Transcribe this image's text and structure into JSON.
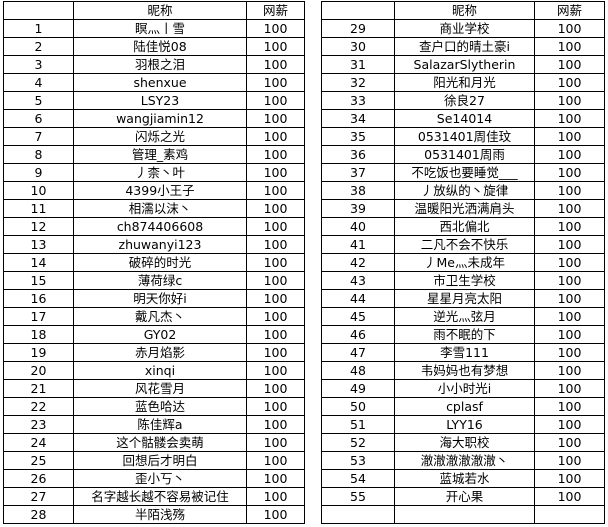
{
  "headers": {
    "index": "",
    "nickname": "昵称",
    "salary": "网薪"
  },
  "left": [
    [
      "1",
      "瞑灬丨雪",
      "100"
    ],
    [
      "2",
      "陆佳悦08",
      "100"
    ],
    [
      "3",
      "羽根之泪",
      "100"
    ],
    [
      "4",
      "shenxue",
      "100"
    ],
    [
      "5",
      "LSY23",
      "100"
    ],
    [
      "6",
      "wangjiamin12",
      "100"
    ],
    [
      "7",
      "闪烁之光",
      "100"
    ],
    [
      "8",
      "管理_素鸡",
      "100"
    ],
    [
      "9",
      "丿柰丶叶",
      "100"
    ],
    [
      "10",
      "4399小王子",
      "100"
    ],
    [
      "11",
      "相濡以沫丶",
      "100"
    ],
    [
      "12",
      "ch874406608",
      "100"
    ],
    [
      "13",
      "zhuwanyi123",
      "100"
    ],
    [
      "14",
      "破碎的时光",
      "100"
    ],
    [
      "15",
      "薄荷绿c",
      "100"
    ],
    [
      "16",
      "明天你好i",
      "100"
    ],
    [
      "17",
      "戴凡杰丶",
      "100"
    ],
    [
      "18",
      "GY02",
      "100"
    ],
    [
      "19",
      "赤月焰影",
      "100"
    ],
    [
      "20",
      "xinqi",
      "100"
    ],
    [
      "21",
      "风花雪月",
      "100"
    ],
    [
      "22",
      "蓝色哈达",
      "100"
    ],
    [
      "23",
      "陈佳辉a",
      "100"
    ],
    [
      "24",
      "这个骷髅会卖萌",
      "100"
    ],
    [
      "25",
      "回想后才明白",
      "100"
    ],
    [
      "26",
      "歪小丂丶",
      "100"
    ],
    [
      "27",
      "名字越长越不容易被记住",
      "100"
    ],
    [
      "28",
      "半陌浅殇",
      "100"
    ]
  ],
  "right": [
    [
      "29",
      "商业学校",
      "100"
    ],
    [
      "30",
      "查户口的晴土豪i",
      "100"
    ],
    [
      "31",
      "SalazarSlytherin",
      "100"
    ],
    [
      "32",
      "阳光和月光",
      "100"
    ],
    [
      "33",
      "徐良27",
      "100"
    ],
    [
      "34",
      "Se14014",
      "100"
    ],
    [
      "35",
      "0531401周佳玟",
      "100"
    ],
    [
      "36",
      "0531401周雨",
      "100"
    ],
    [
      "37",
      "不吃饭也要睡觉___",
      "100"
    ],
    [
      "38",
      "丿放纵的丶旋律",
      "100"
    ],
    [
      "39",
      "温暖阳光洒满肩头",
      "100"
    ],
    [
      "40",
      "西北偏北",
      "100"
    ],
    [
      "41",
      "二凡不会不快乐",
      "100"
    ],
    [
      "42",
      "丿Me灬未成年",
      "100"
    ],
    [
      "43",
      "市卫生学校",
      "100"
    ],
    [
      "44",
      "星星月亮太阳",
      "100"
    ],
    [
      "45",
      "逆光灬弦月",
      "100"
    ],
    [
      "46",
      "雨不眠的下",
      "100"
    ],
    [
      "47",
      "李雪111",
      "100"
    ],
    [
      "48",
      "韦妈妈也有梦想",
      "100"
    ],
    [
      "49",
      "小小时光i",
      "100"
    ],
    [
      "50",
      "cplasf",
      "100"
    ],
    [
      "51",
      "LYY16",
      "100"
    ],
    [
      "52",
      "海大职校",
      "100"
    ],
    [
      "53",
      "澈澈澈澈澈澈丶",
      "100"
    ],
    [
      "54",
      "蓝城若水",
      "100"
    ],
    [
      "55",
      "开心果",
      "100"
    ],
    [
      "",
      "",
      ""
    ]
  ]
}
